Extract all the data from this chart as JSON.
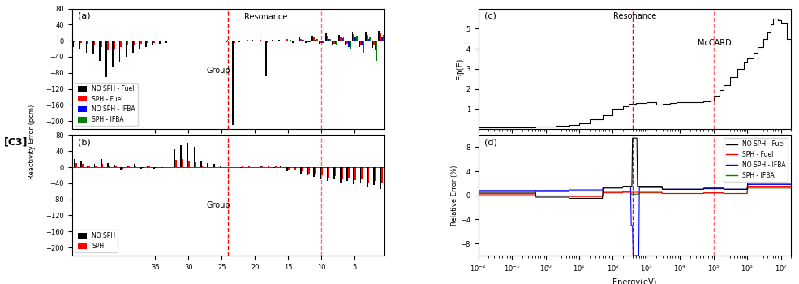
{
  "title_left": "[C3]",
  "panel_a_label": "(a)",
  "panel_b_label": "(b)",
  "panel_c_label": "(c)",
  "panel_d_label": "(d)",
  "resonance_label": "Resonance",
  "group_label": "Group",
  "ylabel_ab": "Reactivity Error (pcm)",
  "ylabel_c": "Eφ(E)",
  "ylabel_d": "Relative Error (%)",
  "xlabel_d": "Energy(eV)",
  "mccard_label": "McCARD",
  "legend_a": [
    "NO SPH - Fuel",
    "SPH - Fuel",
    "NO SPH - IFBA",
    "SPH - IFBA"
  ],
  "legend_a_colors": [
    "black",
    "red",
    "blue",
    "green"
  ],
  "legend_b": [
    "NO SPH",
    "SPH"
  ],
  "legend_b_colors": [
    "black",
    "red"
  ],
  "legend_d": [
    "NO SPH - Fuel",
    "SPH - Fuel",
    "NO SPH - IFBA",
    "SPH - IFBA"
  ],
  "legend_d_colors": [
    "black",
    "red",
    "blue",
    "green"
  ],
  "num_groups": 47,
  "vline1_energy": 400.0,
  "vline2_energy": 100000.0,
  "ylim_a": [
    -220,
    80
  ],
  "ylim_b": [
    -220,
    80
  ],
  "yticks_a": [
    -200,
    -160,
    -120,
    -80,
    -40,
    0,
    40,
    80
  ],
  "yticks_b": [
    -200,
    -160,
    -120,
    -80,
    -40,
    0,
    40,
    80
  ],
  "ylim_c": [
    0,
    6
  ],
  "ylim_d": [
    -10,
    10
  ],
  "yticks_d": [
    -8,
    -4,
    0,
    4,
    8
  ]
}
